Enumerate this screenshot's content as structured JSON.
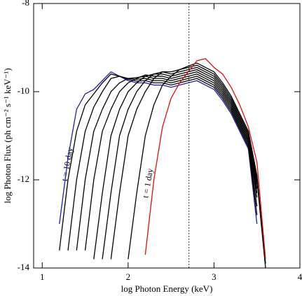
{
  "chart_data": {
    "type": "line",
    "xlabel": "log Photon Energy (keV)",
    "ylabel": "log Photon Flux (ph cm⁻² s⁻¹ keV⁻¹)",
    "annotations": [
      "t = 10 day",
      "t = 1 day"
    ],
    "xlim": [
      0.9,
      4
    ],
    "ylim": [
      -14,
      -8
    ],
    "xticks": [
      1,
      2,
      3,
      4
    ],
    "yticks": [
      -14,
      -12,
      -10,
      -8
    ],
    "vline": 2.708,
    "x": [
      1.1,
      1.2,
      1.3,
      1.4,
      1.5,
      1.6,
      1.7,
      1.8,
      1.9,
      2.0,
      2.1,
      2.2,
      2.3,
      2.4,
      2.5,
      2.6,
      2.7,
      2.8,
      2.9,
      3.0,
      3.1,
      3.2,
      3.3,
      3.4,
      3.5,
      3.6
    ],
    "series": [
      {
        "color": "#1f1fb4",
        "values": [
          null,
          -13.0,
          -11.5,
          -10.4,
          -10.05,
          -9.95,
          -9.75,
          -9.55,
          -9.65,
          -9.75,
          -9.8,
          -9.8,
          -9.85,
          -9.85,
          -9.9,
          -9.85,
          -9.8,
          -9.75,
          -9.85,
          -9.95,
          -10.2,
          -10.5,
          -10.9,
          -11.3,
          -13.0,
          null
        ]
      },
      {
        "color": "#000000",
        "values": [
          null,
          -13.6,
          -12.0,
          -10.9,
          -10.3,
          -10.05,
          -9.8,
          -9.6,
          -9.65,
          -9.72,
          -9.76,
          -9.75,
          -9.8,
          -9.8,
          -9.85,
          -9.8,
          -9.75,
          -9.7,
          -9.8,
          -9.9,
          -10.15,
          -10.45,
          -10.85,
          -11.25,
          -12.8,
          null
        ]
      },
      {
        "color": "#000000",
        "values": [
          null,
          null,
          -13.6,
          -12.0,
          -10.9,
          -10.35,
          -10.0,
          -9.7,
          -9.65,
          -9.7,
          -9.72,
          -9.7,
          -9.75,
          -9.75,
          -9.8,
          -9.75,
          -9.7,
          -9.65,
          -9.75,
          -9.85,
          -10.1,
          -10.4,
          -10.8,
          -11.2,
          -12.6,
          null
        ]
      },
      {
        "color": "#000000",
        "values": [
          null,
          null,
          null,
          -13.6,
          -12.0,
          -10.9,
          -10.4,
          -10.0,
          -9.8,
          -9.7,
          -9.68,
          -9.65,
          -9.7,
          -9.7,
          -9.75,
          -9.7,
          -9.65,
          -9.6,
          -9.7,
          -9.8,
          -10.05,
          -10.35,
          -10.75,
          -11.15,
          -12.4,
          null
        ]
      },
      {
        "color": "#000000",
        "values": [
          null,
          null,
          null,
          null,
          -13.6,
          -12.0,
          -10.9,
          -10.4,
          -10.0,
          -9.8,
          -9.7,
          -9.62,
          -9.65,
          -9.65,
          -9.7,
          -9.65,
          -9.6,
          -9.55,
          -9.65,
          -9.75,
          -10.0,
          -10.3,
          -10.7,
          -11.1,
          -12.3,
          null
        ]
      },
      {
        "color": "#000000",
        "values": [
          null,
          null,
          null,
          null,
          null,
          -13.8,
          -12.3,
          -11.0,
          -10.4,
          -10.0,
          -9.8,
          -9.65,
          -9.6,
          -9.6,
          -9.65,
          -9.6,
          -9.55,
          -9.5,
          -9.6,
          -9.7,
          -9.95,
          -10.25,
          -10.65,
          -11.05,
          -12.2,
          null
        ]
      },
      {
        "color": "#000000",
        "values": [
          null,
          null,
          null,
          null,
          null,
          null,
          -13.8,
          -12.3,
          -11.0,
          -10.4,
          -10.0,
          -9.75,
          -9.6,
          -9.55,
          -9.6,
          -9.55,
          -9.5,
          -9.45,
          -9.55,
          -9.65,
          -9.9,
          -10.2,
          -10.6,
          -11.0,
          -12.1,
          null
        ]
      },
      {
        "color": "#000000",
        "values": [
          null,
          null,
          null,
          null,
          null,
          null,
          null,
          -13.8,
          -12.3,
          -11.0,
          -10.4,
          -10.0,
          -9.7,
          -9.55,
          -9.55,
          -9.5,
          -9.45,
          -9.4,
          -9.5,
          -9.6,
          -9.85,
          -10.15,
          -10.55,
          -10.95,
          -12.0,
          -14.0
        ]
      },
      {
        "color": "#000000",
        "values": [
          null,
          null,
          null,
          null,
          null,
          null,
          null,
          null,
          null,
          -13.8,
          -12.3,
          -11.0,
          -10.3,
          -9.85,
          -9.65,
          -9.5,
          -9.42,
          -9.35,
          -9.45,
          -9.55,
          -9.8,
          -10.1,
          -10.5,
          -10.9,
          -11.9,
          -13.9
        ]
      },
      {
        "color": "#e01010",
        "values": [
          null,
          null,
          null,
          null,
          null,
          null,
          null,
          null,
          null,
          null,
          null,
          -13.7,
          -12.0,
          -10.8,
          -10.15,
          -9.8,
          -9.55,
          -9.3,
          -9.25,
          -9.45,
          -9.6,
          -9.9,
          -10.3,
          -10.8,
          -11.6,
          -13.8
        ]
      }
    ]
  }
}
